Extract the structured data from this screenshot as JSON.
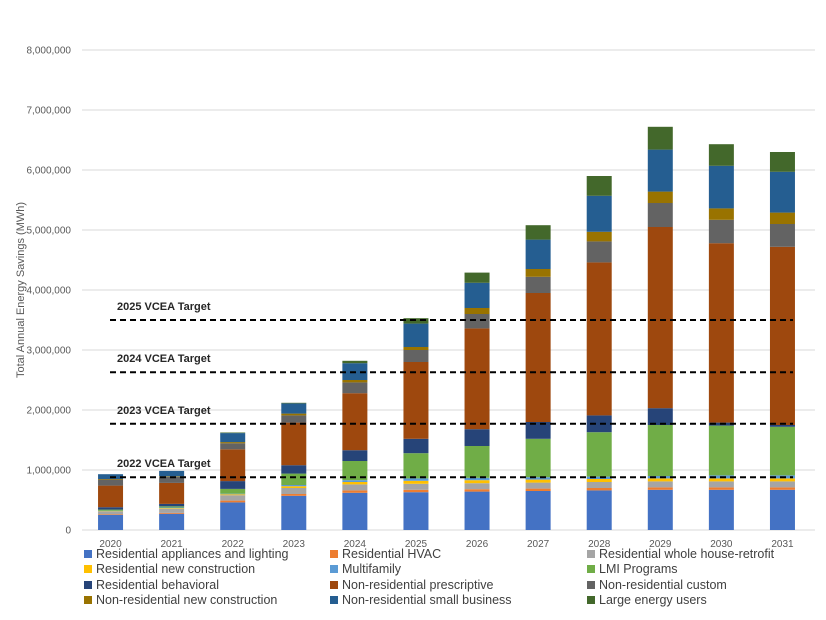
{
  "chart_data": {
    "type": "bar",
    "stacked": true,
    "title": "",
    "xlabel": "",
    "ylabel": "Total Annual Energy Savings (MWh)",
    "ylim": [
      0,
      8000000
    ],
    "yticks": [
      0,
      1000000,
      2000000,
      3000000,
      4000000,
      5000000,
      6000000,
      7000000,
      8000000
    ],
    "ytick_labels": [
      "0",
      "1,000,000",
      "2,000,000",
      "3,000,000",
      "4,000,000",
      "5,000,000",
      "6,000,000",
      "7,000,000",
      "8,000,000"
    ],
    "grid": true,
    "legend_position": "bottom",
    "categories": [
      "2020",
      "2021",
      "2022",
      "2023",
      "2024",
      "2025",
      "2026",
      "2027",
      "2028",
      "2029",
      "2030",
      "2031"
    ],
    "series": [
      {
        "name": "Residential appliances and lighting",
        "color": "#4472C4",
        "values": [
          250000,
          270000,
          460000,
          570000,
          620000,
          630000,
          640000,
          650000,
          660000,
          670000,
          670000,
          670000
        ]
      },
      {
        "name": "Residential HVAC",
        "color": "#ED7D31",
        "values": [
          10000,
          15000,
          30000,
          30000,
          40000,
          40000,
          40000,
          40000,
          40000,
          40000,
          40000,
          40000
        ]
      },
      {
        "name": "Residential whole house-retrofit",
        "color": "#A5A5A5",
        "values": [
          50000,
          70000,
          90000,
          100000,
          100000,
          100000,
          100000,
          100000,
          100000,
          100000,
          100000,
          100000
        ]
      },
      {
        "name": "Residential new construction",
        "color": "#FFC000",
        "values": [
          5000,
          10000,
          15000,
          30000,
          40000,
          50000,
          50000,
          50000,
          50000,
          50000,
          50000,
          50000
        ]
      },
      {
        "name": "Multifamily",
        "color": "#5B9BD5",
        "values": [
          5000,
          10000,
          10000,
          20000,
          30000,
          40000,
          40000,
          40000,
          40000,
          40000,
          50000,
          50000
        ]
      },
      {
        "name": "LMI Programs",
        "color": "#70AD47",
        "values": [
          20000,
          20000,
          80000,
          190000,
          320000,
          420000,
          530000,
          640000,
          740000,
          850000,
          830000,
          810000
        ]
      },
      {
        "name": "Residential behavioral",
        "color": "#264478",
        "values": [
          40000,
          40000,
          130000,
          140000,
          180000,
          240000,
          280000,
          280000,
          280000,
          280000,
          50000,
          30000
        ]
      },
      {
        "name": "Non-residential prescriptive",
        "color": "#9E480E",
        "values": [
          360000,
          350000,
          530000,
          710000,
          950000,
          1280000,
          1680000,
          2150000,
          2550000,
          3020000,
          2990000,
          2970000
        ]
      },
      {
        "name": "Non-residential custom",
        "color": "#636363",
        "values": [
          100000,
          100000,
          100000,
          120000,
          180000,
          200000,
          240000,
          270000,
          350000,
          400000,
          390000,
          380000
        ]
      },
      {
        "name": "Non-residential new construction",
        "color": "#997300",
        "values": [
          10000,
          10000,
          20000,
          30000,
          40000,
          50000,
          100000,
          130000,
          160000,
          190000,
          190000,
          190000
        ]
      },
      {
        "name": "Non-residential small business",
        "color": "#255E91",
        "values": [
          80000,
          90000,
          150000,
          170000,
          280000,
          390000,
          420000,
          490000,
          600000,
          700000,
          710000,
          680000
        ]
      },
      {
        "name": "Large energy users",
        "color": "#43682B",
        "values": [
          0,
          0,
          10000,
          10000,
          40000,
          90000,
          170000,
          240000,
          330000,
          380000,
          360000,
          330000
        ]
      }
    ],
    "reference_lines": [
      {
        "label": "2022 VCEA Target",
        "value": 880000
      },
      {
        "label": "2023 VCEA Target",
        "value": 1770000
      },
      {
        "label": "2024 VCEA Target",
        "value": 2630000
      },
      {
        "label": "2025 VCEA Target",
        "value": 3500000
      }
    ]
  }
}
